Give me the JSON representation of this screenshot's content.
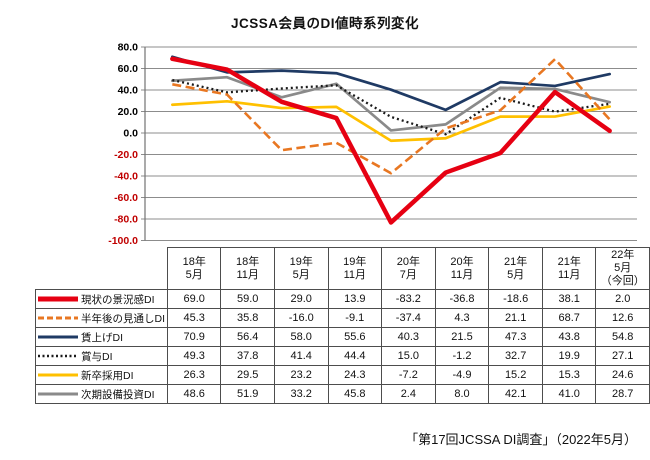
{
  "title": "JCSSA会員のDI値時系列変化",
  "caption": "「第17回JCSSA DI調査」（2022年5月）",
  "chart_data": {
    "type": "line",
    "categories": [
      "18年5月",
      "18年11月",
      "19年5月",
      "19年11月",
      "20年7月",
      "20年11月",
      "21年5月",
      "21年11月",
      "22年5月（今回）"
    ],
    "category_lines": [
      [
        "18年",
        "5月"
      ],
      [
        "18年",
        "11月"
      ],
      [
        "19年",
        "5月"
      ],
      [
        "19年",
        "11月"
      ],
      [
        "20年",
        "7月"
      ],
      [
        "20年",
        "11月"
      ],
      [
        "21年",
        "5月"
      ],
      [
        "21年",
        "11月"
      ],
      [
        "22年",
        "5月",
        "（今回）"
      ]
    ],
    "series": [
      {
        "name": "現状の景況感DI",
        "color": "#e60012",
        "line_style": "solid-thick",
        "values": [
          69.0,
          59.0,
          29.0,
          13.9,
          -83.2,
          -36.8,
          -18.6,
          38.1,
          2.0
        ]
      },
      {
        "name": "半年後の見通しDI",
        "color": "#e87722",
        "line_style": "dashed",
        "values": [
          45.3,
          35.8,
          -16.0,
          -9.1,
          -37.4,
          4.3,
          21.1,
          68.7,
          12.6
        ]
      },
      {
        "name": "賃上げDI",
        "color": "#1f3a64",
        "line_style": "solid",
        "values": [
          70.9,
          56.4,
          58.0,
          55.6,
          40.3,
          21.5,
          47.3,
          43.8,
          54.8
        ]
      },
      {
        "name": "賞与DI",
        "color": "#1a1a1a",
        "line_style": "dotted",
        "values": [
          49.3,
          37.8,
          41.4,
          44.4,
          15.0,
          -1.2,
          32.7,
          19.9,
          27.1
        ]
      },
      {
        "name": "新卒採用DI",
        "color": "#ffc000",
        "line_style": "solid",
        "values": [
          26.3,
          29.5,
          23.2,
          24.3,
          -7.2,
          -4.9,
          15.2,
          15.3,
          24.6
        ]
      },
      {
        "name": "次期設備投資DI",
        "color": "#8a8a8a",
        "line_style": "solid",
        "values": [
          48.6,
          51.9,
          33.2,
          45.8,
          2.4,
          8.0,
          42.1,
          41.0,
          28.7
        ]
      }
    ],
    "ylim": [
      -100,
      80
    ],
    "ytick_interval": 20,
    "ytick_label_format": "one-decimal",
    "grid": "horizontal",
    "legend_position": "table-left-column",
    "axis_label_colors": {
      "positive": "#000000",
      "negative": "#c00000"
    }
  }
}
